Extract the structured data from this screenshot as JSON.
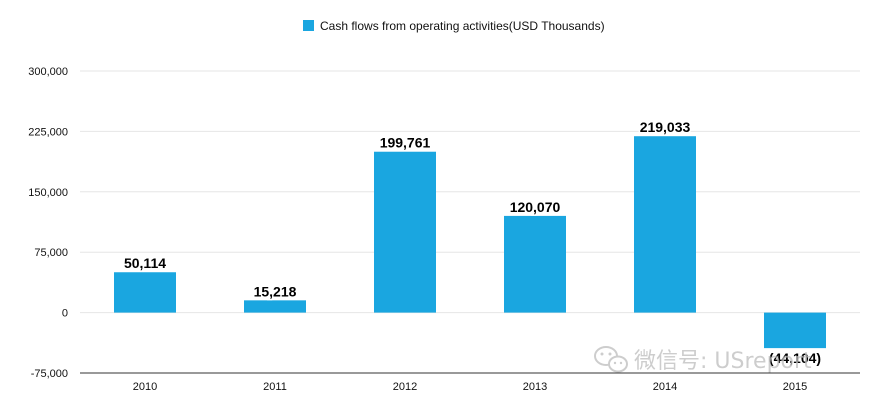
{
  "chart_data": {
    "type": "bar",
    "title": "",
    "xlabel": "",
    "ylabel": "",
    "legend": [
      "Cash flows from operating activities(USD Thousands)"
    ],
    "legend_position": "top-center",
    "categories": [
      "2010",
      "2011",
      "2012",
      "2013",
      "2014",
      "2015"
    ],
    "series": [
      {
        "name": "Cash flows from operating activities(USD Thousands)",
        "values": [
          50114,
          15218,
          199761,
          120070,
          219033,
          -44104
        ],
        "labels": [
          "50,114",
          "15,218",
          "199,761",
          "120,070",
          "219,033",
          "(44,104)"
        ],
        "color": "#1aa6e0"
      }
    ],
    "ylim": [
      -75000,
      300000
    ],
    "yticks": [
      -75000,
      0,
      75000,
      150000,
      225000,
      300000
    ],
    "ytick_labels": [
      "-75,000",
      "0",
      "75,000",
      "150,000",
      "225,000",
      "300,000"
    ],
    "grid": true
  },
  "watermark": {
    "text": "微信号: USreport",
    "icon": "wechat-icon"
  },
  "colors": {
    "bar": "#1aa6e0",
    "grid": "#e6e6e6",
    "axis": "#333333"
  }
}
